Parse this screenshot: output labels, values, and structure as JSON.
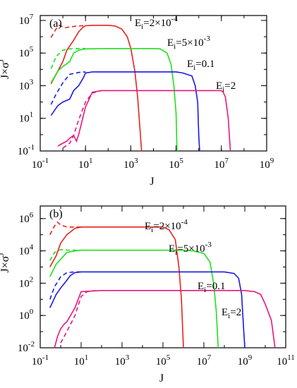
{
  "chart_data": [
    {
      "type": "line",
      "panel_label": "(a)",
      "xlabel": "J",
      "ylabel": "J×σJ",
      "xscale": "log",
      "yscale": "log",
      "xlim": [
        0.1,
        1000000000
      ],
      "ylim": [
        0.1,
        20000000
      ],
      "x_ticks": [
        {
          "base": "10",
          "exp": "-1"
        },
        {
          "base": "10",
          "exp": "1"
        },
        {
          "base": "10",
          "exp": "3"
        },
        {
          "base": "10",
          "exp": "5"
        },
        {
          "base": "10",
          "exp": "7"
        },
        {
          "base": "10",
          "exp": "9"
        }
      ],
      "y_ticks": [
        {
          "base": "10",
          "exp": "-1"
        },
        {
          "base": "10",
          "exp": "1"
        },
        {
          "base": "10",
          "exp": "3"
        },
        {
          "base": "10",
          "exp": "5"
        },
        {
          "base": "10",
          "exp": "7"
        }
      ],
      "series": [
        {
          "label": "Ei=2×10-4",
          "color": "#e8231e",
          "solid": [
            [
              0.3,
              1300
            ],
            [
              0.6,
              8000
            ],
            [
              1,
              30000
            ],
            [
              1.5,
              150000
            ],
            [
              3,
              600000
            ],
            [
              5,
              2000000
            ],
            [
              8,
              4000000
            ],
            [
              10,
              4700000
            ],
            [
              20,
              5000000
            ],
            [
              50,
              5000000
            ],
            [
              100,
              5000000
            ],
            [
              200,
              4600000
            ],
            [
              400,
              3000000
            ],
            [
              700,
              1000000
            ],
            [
              1000,
              200000
            ],
            [
              1500,
              8000
            ],
            [
              2000,
              200
            ],
            [
              3000,
              0.1
            ]
          ],
          "dashed": [
            [
              0.3,
              900000
            ],
            [
              0.5,
              3000000
            ],
            [
              0.7,
              5000000
            ],
            [
              1.2,
              3500000
            ],
            [
              2,
              4000000
            ],
            [
              4,
              4500000
            ],
            [
              8,
              4800000
            ],
            [
              10,
              5000000
            ]
          ]
        },
        {
          "label": "Ei=5×10-3",
          "color": "#1fe01f",
          "solid": [
            [
              0.3,
              1500
            ],
            [
              0.6,
              8000
            ],
            [
              1,
              15000
            ],
            [
              2,
              30000
            ],
            [
              3,
              100000
            ],
            [
              5,
              150000
            ],
            [
              10,
              180000
            ],
            [
              100,
              190000
            ],
            [
              10000,
              190000
            ],
            [
              20000,
              180000
            ],
            [
              40000,
              100000
            ],
            [
              60000,
              20000
            ],
            [
              80000,
              1000
            ],
            [
              100000,
              20
            ],
            [
              110000,
              0.1
            ]
          ],
          "dashed": [
            [
              0.3,
              11000
            ],
            [
              0.5,
              60000
            ],
            [
              1,
              150000
            ],
            [
              2,
              180000
            ],
            [
              5,
              190000
            ],
            [
              10,
              190000
            ]
          ]
        },
        {
          "label": "Ei=0.1",
          "color": "#1a1ae8",
          "solid": [
            [
              0.3,
              15
            ],
            [
              0.6,
              60
            ],
            [
              1,
              100
            ],
            [
              2,
              150
            ],
            [
              3,
              500
            ],
            [
              5,
              1000
            ],
            [
              8,
              3000
            ],
            [
              10,
              6000
            ],
            [
              20,
              7000
            ],
            [
              100,
              7000
            ],
            [
              100000,
              7000
            ],
            [
              200000,
              6000
            ],
            [
              500000,
              4000
            ],
            [
              700000,
              1000
            ],
            [
              900000,
              100
            ],
            [
              1000000,
              1
            ],
            [
              1100000,
              0.1
            ]
          ],
          "dashed": [
            [
              0.3,
              70
            ],
            [
              0.5,
              300
            ],
            [
              1,
              1500
            ],
            [
              2,
              5000
            ],
            [
              5,
              6500
            ],
            [
              10,
              7000
            ]
          ]
        },
        {
          "label": "Ei=2",
          "color": "#e8177d",
          "solid": [
            [
              0.6,
              0.2
            ],
            [
              1,
              0.3
            ],
            [
              1.5,
              0.4
            ],
            [
              2,
              0.6
            ],
            [
              3,
              0.9
            ],
            [
              4,
              0.4
            ],
            [
              5,
              1
            ],
            [
              10,
              50
            ],
            [
              20,
              400
            ],
            [
              50,
              500
            ],
            [
              100,
              500
            ],
            [
              10000000,
              500
            ],
            [
              12000000,
              400
            ],
            [
              15000000,
              200
            ],
            [
              20000000,
              10
            ],
            [
              25000000,
              0.1
            ]
          ],
          "dashed": [
            [
              1,
              0.15
            ],
            [
              2,
              0.3
            ],
            [
              3,
              0.9
            ],
            [
              5,
              8
            ],
            [
              10,
              100
            ],
            [
              20,
              350
            ],
            [
              50,
              500
            ]
          ]
        }
      ],
      "annotations": [
        {
          "base": "E",
          "sub": "i",
          "text": "=2×10",
          "sup": "-4"
        },
        {
          "base": "E",
          "sub": "i",
          "text": "=5×10",
          "sup": "-3"
        },
        {
          "base": "E",
          "sub": "i",
          "text": "=0.1",
          "sup": ""
        },
        {
          "base": "E",
          "sub": "i",
          "text": "=2",
          "sup": ""
        }
      ]
    },
    {
      "type": "line",
      "panel_label": "(b)",
      "xlabel": "J",
      "ylabel": "J×σJ",
      "xscale": "log",
      "yscale": "log",
      "xlim": [
        0.1,
        100000000000
      ],
      "ylim": [
        0.01,
        6000000
      ],
      "x_ticks": [
        {
          "base": "10",
          "exp": "-1"
        },
        {
          "base": "10",
          "exp": "1"
        },
        {
          "base": "10",
          "exp": "3"
        },
        {
          "base": "10",
          "exp": "5"
        },
        {
          "base": "10",
          "exp": "7"
        },
        {
          "base": "10",
          "exp": "9"
        },
        {
          "base": "10",
          "exp": "11"
        }
      ],
      "y_ticks": [
        {
          "base": "10",
          "exp": "-2"
        },
        {
          "base": "10",
          "exp": "0"
        },
        {
          "base": "10",
          "exp": "2"
        },
        {
          "base": "10",
          "exp": "4"
        },
        {
          "base": "10",
          "exp": "6"
        }
      ],
      "series": [
        {
          "label": "Ei=2×10-4",
          "color": "#e8231e",
          "solid": [
            [
              0.3,
              1000
            ],
            [
              0.6,
              5000
            ],
            [
              1,
              30000
            ],
            [
              2,
              100000
            ],
            [
              3,
              150000
            ],
            [
              5,
              250000
            ],
            [
              10,
              300000
            ],
            [
              100,
              300000
            ],
            [
              10000,
              300000
            ],
            [
              100000,
              300000
            ],
            [
              200000,
              200000
            ],
            [
              400000,
              50000
            ],
            [
              600000,
              1000
            ],
            [
              800000,
              10
            ],
            [
              1000000,
              0.01
            ]
          ],
          "dashed": [
            [
              0.3,
              100000
            ],
            [
              0.5,
              350000
            ],
            [
              0.7,
              600000
            ],
            [
              1,
              400000
            ],
            [
              2,
              300000
            ],
            [
              5,
              300000
            ],
            [
              10,
              300000
            ]
          ]
        },
        {
          "label": "Ei=5×10-3",
          "color": "#1fe01f",
          "solid": [
            [
              0.3,
              250
            ],
            [
              0.6,
              1500
            ],
            [
              1,
              3000
            ],
            [
              2,
              8000
            ],
            [
              5,
              10000
            ],
            [
              10,
              11000
            ],
            [
              1000,
              11000
            ],
            [
              1000000,
              11000
            ],
            [
              3000000,
              10000
            ],
            [
              10000000,
              7000
            ],
            [
              20000000,
              2000
            ],
            [
              30000000,
              100
            ],
            [
              40000000,
              2
            ],
            [
              50000000,
              0.01
            ]
          ],
          "dashed": [
            [
              0.3,
              2500
            ],
            [
              0.5,
              8000
            ],
            [
              1,
              12000
            ],
            [
              3,
              11000
            ],
            [
              10,
              11000
            ]
          ]
        },
        {
          "label": "Ei=0.1",
          "color": "#1a1ae8",
          "solid": [
            [
              0.3,
              3
            ],
            [
              0.6,
              20
            ],
            [
              1,
              50
            ],
            [
              2,
              150
            ],
            [
              3,
              300
            ],
            [
              5,
              450
            ],
            [
              10,
              500
            ],
            [
              1000,
              500
            ],
            [
              100000000,
              500
            ],
            [
              300000000,
              400
            ],
            [
              500000000,
              200
            ],
            [
              700000000,
              20
            ],
            [
              800000000,
              1
            ],
            [
              1000000000,
              0.01
            ]
          ],
          "dashed": [
            [
              0.3,
              10
            ],
            [
              0.5,
              60
            ],
            [
              1,
              250
            ],
            [
              2,
              450
            ],
            [
              5,
              500
            ],
            [
              10,
              500
            ]
          ]
        },
        {
          "label": "Ei=2",
          "color": "#e8177d",
          "solid": [
            [
              0.5,
              0.01
            ],
            [
              0.7,
              0.05
            ],
            [
              1,
              0.15
            ],
            [
              1.5,
              0.3
            ],
            [
              2,
              0.4
            ],
            [
              5,
              3
            ],
            [
              10,
              30
            ],
            [
              100,
              35
            ],
            [
              1000000000,
              35
            ],
            [
              3000000000,
              30
            ],
            [
              6000000000,
              20
            ],
            [
              10000000000,
              5
            ],
            [
              20000000000,
              0.5
            ],
            [
              30000000000,
              0.01
            ]
          ],
          "dashed": [
            [
              1,
              0.02
            ],
            [
              2,
              0.1
            ],
            [
              5,
              1
            ],
            [
              10,
              15
            ],
            [
              20,
              30
            ],
            [
              50,
              35
            ]
          ]
        }
      ],
      "annotations": [
        {
          "base": "E",
          "sub": "i",
          "text": "=2×10",
          "sup": "-4"
        },
        {
          "base": "E",
          "sub": "i",
          "text": "=5×10",
          "sup": "-3"
        },
        {
          "base": "E",
          "sub": "i",
          "text": "=0.1",
          "sup": ""
        },
        {
          "base": "E",
          "sub": "i",
          "text": "=2",
          "sup": ""
        }
      ]
    }
  ]
}
